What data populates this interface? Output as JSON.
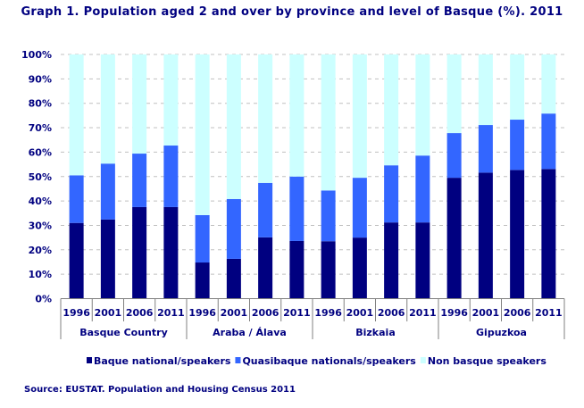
{
  "chart_data": {
    "type": "bar",
    "stacked": true,
    "title": "Graph 1. Population aged 2 and over by province and level of Basque (%). 2011",
    "source": "Source: EUSTAT. Population and Housing Census 2011",
    "groups": [
      "Basque Country",
      "Araba / Álava",
      "Bizkaia",
      "Gipuzkoa"
    ],
    "categories": [
      "1996",
      "2001",
      "2006",
      "2011",
      "1996",
      "2001",
      "2006",
      "2011",
      "1996",
      "2001",
      "2006",
      "2011",
      "1996",
      "2001",
      "2006",
      "2011"
    ],
    "series": [
      {
        "name": "Baque national/speakers",
        "color": "#000080",
        "values": [
          31.0,
          32.4,
          37.5,
          37.5,
          14.8,
          16.3,
          25.1,
          23.6,
          23.5,
          25.0,
          31.2,
          31.2,
          49.5,
          51.6,
          52.7,
          53.1
        ]
      },
      {
        "name": "Quasibaque nationals/speakers",
        "color": "#3366FF",
        "values": [
          19.5,
          22.9,
          21.9,
          25.2,
          19.4,
          24.5,
          22.3,
          26.4,
          20.8,
          24.5,
          23.4,
          27.4,
          18.3,
          19.5,
          20.6,
          22.7
        ]
      },
      {
        "name": "Non basque speakers",
        "color": "#CCFFFF",
        "values": [
          49.5,
          44.7,
          40.6,
          37.3,
          65.8,
          59.2,
          52.6,
          50.0,
          55.7,
          50.5,
          45.4,
          41.4,
          32.2,
          28.9,
          26.7,
          24.2
        ]
      }
    ],
    "yticks": [
      "0%",
      "10%",
      "20%",
      "30%",
      "40%",
      "50%",
      "60%",
      "70%",
      "80%",
      "90%",
      "100%"
    ],
    "ylim": [
      0,
      100
    ],
    "grid": true,
    "legend": "bottom"
  }
}
